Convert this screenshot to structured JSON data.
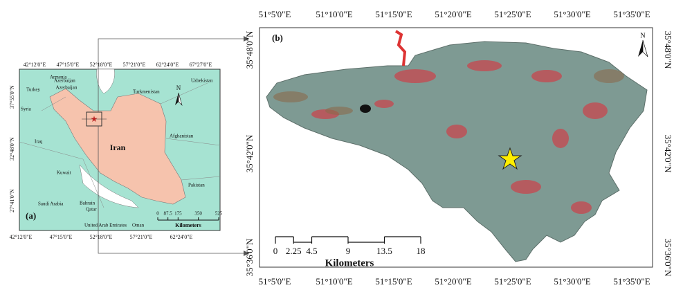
{
  "panel_a": {
    "label": "(a)",
    "north": "N",
    "country": "Iran",
    "top_lon_labels": [
      "42°12'0\"E",
      "47°15'0\"E",
      "52°18'0\"E",
      "57°21'0\"E",
      "62°24'0\"E",
      "67°27'0\"E"
    ],
    "bottom_lon_labels": [
      "42°12'0\"E",
      "47°15'0\"E",
      "52°18'0\"E",
      "57°21'0\"E",
      "62°24'0\"E"
    ],
    "lat_labels": [
      "37°55'0\"N",
      "32°48'0\"N",
      "27°41'0\"N"
    ],
    "place_names": [
      "Armenia",
      "Azerbaijan",
      "Azerbaijan",
      "Turkey",
      "Syria",
      "Iraq",
      "Kuwait",
      "Saudi Arabia",
      "Bahrain",
      "Qatar",
      "United Arab Emirates",
      "Oman",
      "Turkmenistan",
      "Uzbekistan",
      "Afghanistan",
      "Pakistan"
    ],
    "scale": {
      "ticks": [
        0,
        87.5,
        175,
        350,
        525
      ],
      "unit": "Kilometers"
    }
  },
  "panel_b": {
    "label": "(b)",
    "north": "N",
    "top_lon_labels": [
      "51°5'0\"E",
      "51°10'0\"E",
      "51°15'0\"E",
      "51°20'0\"E",
      "51°25'0\"E",
      "51°30'0\"E",
      "51°35'0\"E"
    ],
    "bottom_lon_labels": [
      "51°5'0\"E",
      "51°10'0\"E",
      "51°15'0\"E",
      "51°20'0\"E",
      "51°25'0\"E",
      "51°30'0\"E",
      "51°35'0\"E"
    ],
    "lat_labels": [
      "35°48'0\"N",
      "35°42'0\"N",
      "35°36'0\"N"
    ],
    "scale": {
      "ticks": [
        0,
        2.25,
        4.5,
        9,
        13.5,
        18
      ],
      "unit": "Kilometers"
    }
  }
}
